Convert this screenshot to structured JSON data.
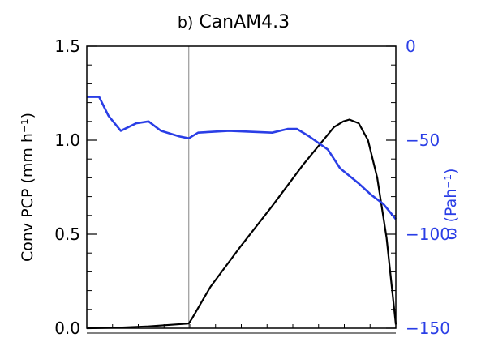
{
  "chart_data": {
    "type": "line",
    "title": "b) CanAM4.3",
    "title_prefix": "b)",
    "title_main": "CanAM4.3",
    "xlabel": "",
    "x_ticks_labeled": false,
    "grid": false,
    "legend": "none",
    "vertical_marker": {
      "x": 0.33,
      "color": "#999999"
    },
    "y_left": {
      "label": "Conv PCP (mm h⁻¹)",
      "range": [
        0,
        1.5
      ],
      "ticks": [
        "0.0",
        "0.5",
        "1.0",
        "1.5"
      ],
      "color": "#000000"
    },
    "y_right": {
      "label": "ω (Pah⁻¹)",
      "range": [
        -150,
        0
      ],
      "ticks": [
        "0",
        "-50",
        "-100",
        "-150"
      ],
      "color": "#2a3ee6"
    },
    "series": [
      {
        "axis": "left",
        "color": "#000000",
        "points": [
          [
            0.0,
            0.0
          ],
          [
            0.1,
            0.003
          ],
          [
            0.2,
            0.01
          ],
          [
            0.33,
            0.025
          ],
          [
            0.34,
            0.05
          ],
          [
            0.4,
            0.22
          ],
          [
            0.5,
            0.44
          ],
          [
            0.6,
            0.65
          ],
          [
            0.7,
            0.87
          ],
          [
            0.8,
            1.07
          ],
          [
            0.83,
            1.1
          ],
          [
            0.85,
            1.11
          ],
          [
            0.88,
            1.09
          ],
          [
            0.91,
            1.0
          ],
          [
            0.94,
            0.8
          ],
          [
            0.97,
            0.48
          ],
          [
            0.985,
            0.25
          ],
          [
            1.0,
            0.02
          ]
        ]
      },
      {
        "axis": "right",
        "color": "#2a3ee6",
        "points": [
          [
            0.0,
            -27
          ],
          [
            0.04,
            -27
          ],
          [
            0.07,
            -37
          ],
          [
            0.11,
            -45
          ],
          [
            0.16,
            -41
          ],
          [
            0.2,
            -40
          ],
          [
            0.24,
            -45
          ],
          [
            0.3,
            -48
          ],
          [
            0.33,
            -49
          ],
          [
            0.36,
            -46
          ],
          [
            0.46,
            -45
          ],
          [
            0.6,
            -46
          ],
          [
            0.65,
            -44
          ],
          [
            0.68,
            -44
          ],
          [
            0.72,
            -48
          ],
          [
            0.78,
            -55
          ],
          [
            0.82,
            -65
          ],
          [
            0.88,
            -73
          ],
          [
            0.92,
            -79
          ],
          [
            0.96,
            -84
          ],
          [
            1.0,
            -92
          ]
        ]
      }
    ]
  }
}
